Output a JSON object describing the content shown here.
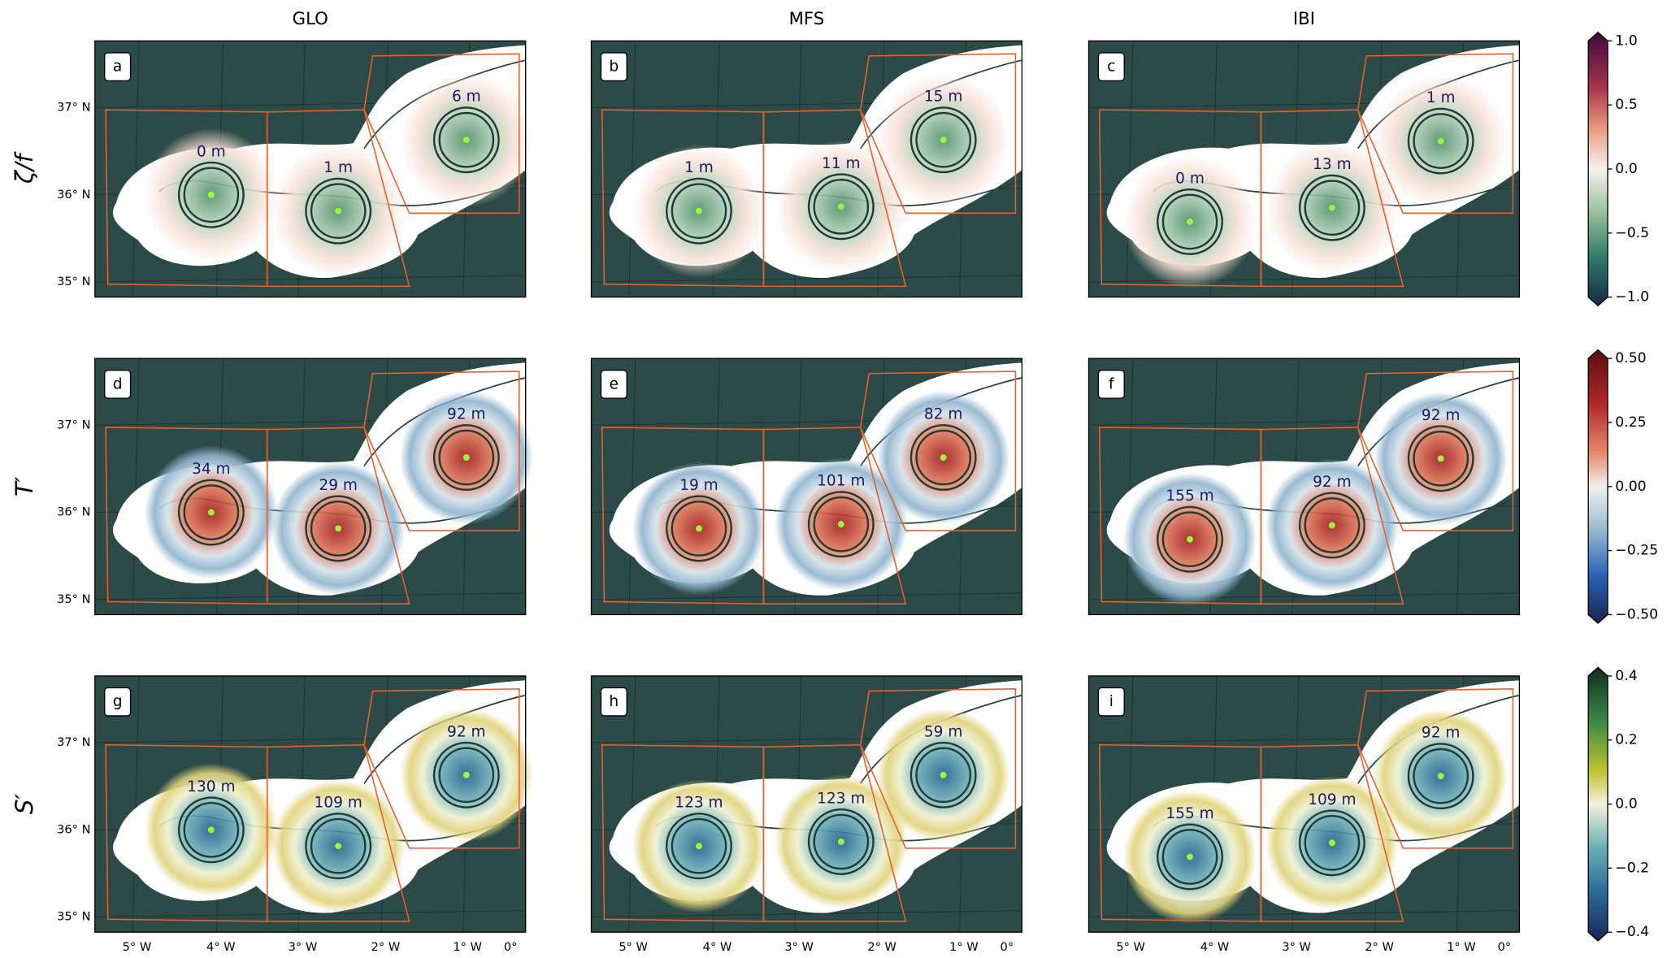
{
  "column_titles": [
    "GLO",
    "MFS",
    "IBI"
  ],
  "row_labels": [
    "ζ/f",
    "T′",
    "S′"
  ],
  "lat_labels": [
    "37° N",
    "36° N",
    "35° N"
  ],
  "lon_labels": [
    "5° W",
    "4° W",
    "3° W",
    "2° W",
    "1° W",
    "0°"
  ],
  "panels": [
    {
      "letter": "a",
      "depths": [
        "0 m",
        "1 m",
        "6 m"
      ]
    },
    {
      "letter": "b",
      "depths": [
        "1 m",
        "11 m",
        "15 m"
      ]
    },
    {
      "letter": "c",
      "depths": [
        "0 m",
        "13 m",
        "1 m"
      ]
    },
    {
      "letter": "d",
      "depths": [
        "34 m",
        "29 m",
        "92 m"
      ]
    },
    {
      "letter": "e",
      "depths": [
        "19 m",
        "101 m",
        "82 m"
      ]
    },
    {
      "letter": "f",
      "depths": [
        "155 m",
        "92 m",
        "92 m"
      ]
    },
    {
      "letter": "g",
      "depths": [
        "130 m",
        "109 m",
        "92 m"
      ]
    },
    {
      "letter": "h",
      "depths": [
        "123 m",
        "123 m",
        "59 m"
      ]
    },
    {
      "letter": "i",
      "depths": [
        "155 m",
        "109 m",
        "92 m"
      ]
    }
  ],
  "colorbars": [
    {
      "ticks": [
        "1.0",
        "0.5",
        "0.0",
        "−0.5",
        "−1.0"
      ]
    },
    {
      "ticks": [
        "0.50",
        "0.25",
        "0.00",
        "−0.25",
        "−0.50"
      ]
    },
    {
      "ticks": [
        "0.4",
        "0.2",
        "0.0",
        "−0.2",
        "−0.4"
      ]
    }
  ]
}
